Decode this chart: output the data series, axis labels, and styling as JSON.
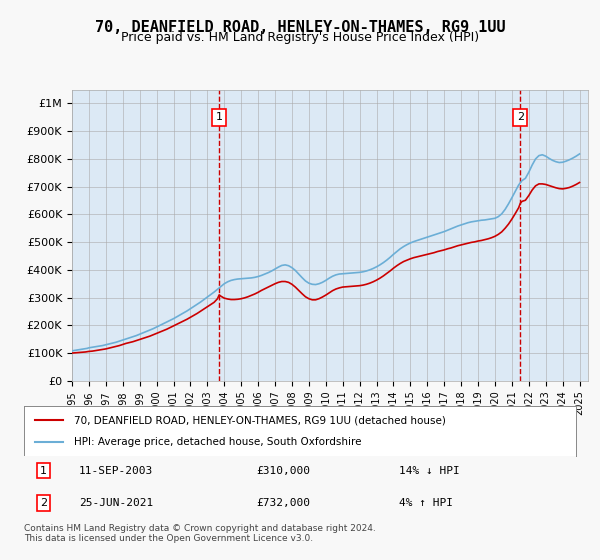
{
  "title": "70, DEANFIELD ROAD, HENLEY-ON-THAMES, RG9 1UU",
  "subtitle": "Price paid vs. HM Land Registry's House Price Index (HPI)",
  "background_color": "#dce9f5",
  "plot_bg_color": "#dce9f5",
  "hpi_color": "#6baed6",
  "price_color": "#cc0000",
  "dashed_line_color": "#cc0000",
  "ylim": [
    0,
    1050000
  ],
  "yticks": [
    0,
    100000,
    200000,
    300000,
    400000,
    500000,
    600000,
    700000,
    800000,
    900000,
    1000000
  ],
  "ytick_labels": [
    "£0",
    "£100K",
    "£200K",
    "£300K",
    "£400K",
    "£500K",
    "£600K",
    "£700K",
    "£800K",
    "£900K",
    "£1M"
  ],
  "xlabel_years": [
    "1995",
    "1996",
    "1997",
    "1998",
    "1999",
    "2000",
    "2001",
    "2002",
    "2003",
    "2004",
    "2005",
    "2006",
    "2007",
    "2008",
    "2009",
    "2010",
    "2011",
    "2012",
    "2013",
    "2014",
    "2015",
    "2016",
    "2017",
    "2018",
    "2019",
    "2020",
    "2021",
    "2022",
    "2023",
    "2024",
    "2025"
  ],
  "transaction1": {
    "date": "11-SEP-2003",
    "price": 310000,
    "label": "1",
    "year": 2003.7
  },
  "transaction2": {
    "date": "25-JUN-2021",
    "price": 732000,
    "label": "2",
    "year": 2021.5
  },
  "legend_line1": "70, DEANFIELD ROAD, HENLEY-ON-THAMES, RG9 1UU (detached house)",
  "legend_line2": "HPI: Average price, detached house, South Oxfordshire",
  "annotation1": "1   11-SEP-2003          £310,000         14% ↓ HPI",
  "annotation2": "2   25-JUN-2021          £732,000           4% ↑ HPI",
  "footer": "Contains HM Land Registry data © Crown copyright and database right 2024.\nThis data is licensed under the Open Government Licence v3.0.",
  "hpi_data_x": [
    1995.0,
    1995.1,
    1995.2,
    1995.3,
    1995.4,
    1995.5,
    1995.6,
    1995.7,
    1995.8,
    1995.9,
    1996.0,
    1996.2,
    1996.4,
    1996.6,
    1996.8,
    1997.0,
    1997.2,
    1997.4,
    1997.6,
    1997.8,
    1998.0,
    1998.2,
    1998.4,
    1998.6,
    1998.8,
    1999.0,
    1999.2,
    1999.4,
    1999.6,
    1999.8,
    2000.0,
    2000.2,
    2000.4,
    2000.6,
    2000.8,
    2001.0,
    2001.2,
    2001.4,
    2001.6,
    2001.8,
    2002.0,
    2002.2,
    2002.4,
    2002.6,
    2002.8,
    2003.0,
    2003.2,
    2003.4,
    2003.6,
    2003.8,
    2004.0,
    2004.2,
    2004.4,
    2004.6,
    2004.8,
    2005.0,
    2005.2,
    2005.4,
    2005.6,
    2005.8,
    2006.0,
    2006.2,
    2006.4,
    2006.6,
    2006.8,
    2007.0,
    2007.2,
    2007.4,
    2007.6,
    2007.8,
    2008.0,
    2008.2,
    2008.4,
    2008.6,
    2008.8,
    2009.0,
    2009.2,
    2009.4,
    2009.6,
    2009.8,
    2010.0,
    2010.2,
    2010.4,
    2010.6,
    2010.8,
    2011.0,
    2011.2,
    2011.4,
    2011.6,
    2011.8,
    2012.0,
    2012.2,
    2012.4,
    2012.6,
    2012.8,
    2013.0,
    2013.2,
    2013.4,
    2013.6,
    2013.8,
    2014.0,
    2014.2,
    2014.4,
    2014.6,
    2014.8,
    2015.0,
    2015.2,
    2015.4,
    2015.6,
    2015.8,
    2016.0,
    2016.2,
    2016.4,
    2016.6,
    2016.8,
    2017.0,
    2017.2,
    2017.4,
    2017.6,
    2017.8,
    2018.0,
    2018.2,
    2018.4,
    2018.6,
    2018.8,
    2019.0,
    2019.2,
    2019.4,
    2019.6,
    2019.8,
    2020.0,
    2020.2,
    2020.4,
    2020.6,
    2020.8,
    2021.0,
    2021.2,
    2021.4,
    2021.6,
    2021.8,
    2022.0,
    2022.2,
    2022.4,
    2022.6,
    2022.8,
    2023.0,
    2023.2,
    2023.4,
    2023.6,
    2023.8,
    2024.0,
    2024.2,
    2024.4,
    2024.6,
    2024.8,
    2025.0
  ],
  "hpi_data_y": [
    108000,
    109000,
    110000,
    111000,
    112000,
    113000,
    114000,
    115000,
    116000,
    117000,
    119000,
    121000,
    123000,
    125000,
    127000,
    130000,
    133000,
    136000,
    139000,
    143000,
    147000,
    151000,
    155000,
    159000,
    163000,
    168000,
    173000,
    178000,
    183000,
    188000,
    194000,
    200000,
    206000,
    212000,
    218000,
    224000,
    231000,
    238000,
    245000,
    252000,
    260000,
    268000,
    276000,
    284000,
    293000,
    302000,
    311000,
    320000,
    330000,
    340000,
    350000,
    357000,
    362000,
    365000,
    367000,
    368000,
    369000,
    370000,
    371000,
    373000,
    376000,
    380000,
    385000,
    390000,
    396000,
    403000,
    410000,
    416000,
    418000,
    415000,
    408000,
    398000,
    385000,
    372000,
    360000,
    352000,
    348000,
    347000,
    350000,
    355000,
    362000,
    370000,
    377000,
    382000,
    385000,
    386000,
    387000,
    388000,
    389000,
    390000,
    391000,
    393000,
    396000,
    400000,
    405000,
    411000,
    418000,
    426000,
    435000,
    445000,
    456000,
    466000,
    476000,
    484000,
    491000,
    497000,
    502000,
    506000,
    510000,
    514000,
    518000,
    522000,
    526000,
    530000,
    534000,
    538000,
    543000,
    548000,
    553000,
    558000,
    562000,
    566000,
    570000,
    573000,
    575000,
    577000,
    579000,
    580000,
    582000,
    584000,
    586000,
    592000,
    602000,
    618000,
    638000,
    660000,
    683000,
    706000,
    722000,
    730000,
    752000,
    778000,
    800000,
    812000,
    815000,
    810000,
    802000,
    795000,
    790000,
    787000,
    788000,
    792000,
    797000,
    803000,
    810000,
    818000
  ],
  "price_data_x": [
    1995.0,
    1995.2,
    1995.4,
    1995.6,
    1995.8,
    1996.0,
    1996.2,
    1996.4,
    1996.6,
    1996.8,
    1997.0,
    1997.2,
    1997.4,
    1997.6,
    1997.8,
    1998.0,
    1998.2,
    1998.4,
    1998.6,
    1998.8,
    1999.0,
    1999.2,
    1999.4,
    1999.6,
    1999.8,
    2000.0,
    2000.2,
    2000.4,
    2000.6,
    2000.8,
    2001.0,
    2001.2,
    2001.4,
    2001.6,
    2001.8,
    2002.0,
    2002.2,
    2002.4,
    2002.6,
    2002.8,
    2003.0,
    2003.2,
    2003.4,
    2003.6,
    2003.7,
    2003.8,
    2004.0,
    2004.2,
    2004.4,
    2004.6,
    2004.8,
    2005.0,
    2005.2,
    2005.4,
    2005.6,
    2005.8,
    2006.0,
    2006.2,
    2006.4,
    2006.6,
    2006.8,
    2007.0,
    2007.2,
    2007.4,
    2007.6,
    2007.8,
    2008.0,
    2008.2,
    2008.4,
    2008.6,
    2008.8,
    2009.0,
    2009.2,
    2009.4,
    2009.6,
    2009.8,
    2010.0,
    2010.2,
    2010.4,
    2010.6,
    2010.8,
    2011.0,
    2011.2,
    2011.4,
    2011.6,
    2011.8,
    2012.0,
    2012.2,
    2012.4,
    2012.6,
    2012.8,
    2013.0,
    2013.2,
    2013.4,
    2013.6,
    2013.8,
    2014.0,
    2014.2,
    2014.4,
    2014.6,
    2014.8,
    2015.0,
    2015.2,
    2015.4,
    2015.6,
    2015.8,
    2016.0,
    2016.2,
    2016.4,
    2016.6,
    2016.8,
    2017.0,
    2017.2,
    2017.4,
    2017.6,
    2017.8,
    2018.0,
    2018.2,
    2018.4,
    2018.6,
    2018.8,
    2019.0,
    2019.2,
    2019.4,
    2019.6,
    2019.8,
    2020.0,
    2020.2,
    2020.4,
    2020.6,
    2020.8,
    2021.0,
    2021.2,
    2021.4,
    2021.5,
    2021.6,
    2021.8,
    2022.0,
    2022.2,
    2022.4,
    2022.6,
    2022.8,
    2023.0,
    2023.2,
    2023.4,
    2023.6,
    2023.8,
    2024.0,
    2024.2,
    2024.4,
    2024.6,
    2024.8,
    2025.0
  ],
  "price_data_y": [
    100000,
    101000,
    102000,
    103000,
    104000,
    106000,
    107000,
    109000,
    111000,
    113000,
    115000,
    118000,
    121000,
    124000,
    127000,
    131000,
    135000,
    138000,
    141000,
    145000,
    149000,
    153000,
    157000,
    161000,
    166000,
    171000,
    176000,
    181000,
    186000,
    192000,
    198000,
    204000,
    210000,
    216000,
    222000,
    229000,
    236000,
    243000,
    251000,
    259000,
    267000,
    275000,
    283000,
    296000,
    310000,
    305000,
    298000,
    295000,
    293000,
    293000,
    294000,
    296000,
    299000,
    303000,
    308000,
    313000,
    319000,
    326000,
    332000,
    338000,
    344000,
    350000,
    355000,
    358000,
    358000,
    355000,
    348000,
    338000,
    326000,
    314000,
    303000,
    296000,
    292000,
    292000,
    296000,
    302000,
    309000,
    317000,
    325000,
    331000,
    335000,
    338000,
    339000,
    340000,
    341000,
    342000,
    343000,
    345000,
    348000,
    352000,
    357000,
    363000,
    370000,
    378000,
    387000,
    396000,
    406000,
    415000,
    423000,
    430000,
    435000,
    440000,
    444000,
    447000,
    450000,
    453000,
    456000,
    459000,
    462000,
    466000,
    469000,
    472000,
    476000,
    479000,
    483000,
    487000,
    490000,
    493000,
    496000,
    499000,
    501000,
    504000,
    506000,
    509000,
    512000,
    516000,
    521000,
    528000,
    537000,
    550000,
    565000,
    583000,
    603000,
    624000,
    640000,
    647000,
    651000,
    668000,
    688000,
    703000,
    710000,
    710000,
    708000,
    704000,
    700000,
    696000,
    693000,
    692000,
    694000,
    697000,
    702000,
    708000,
    715000
  ]
}
